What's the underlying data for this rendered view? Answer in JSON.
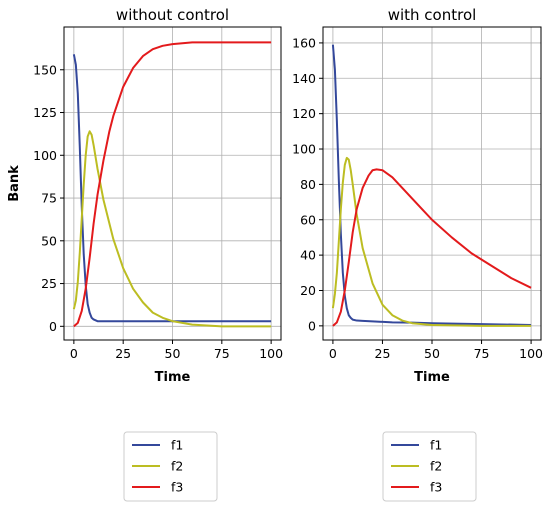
{
  "chart_data": [
    {
      "type": "line",
      "title": "without control",
      "xlabel": "Time",
      "ylabel": "Bank",
      "xlim": [
        -5,
        105
      ],
      "ylim": [
        -8,
        175
      ],
      "xticks": [
        0,
        25,
        50,
        75,
        100
      ],
      "yticks": [
        0,
        25,
        50,
        75,
        100,
        125,
        150
      ],
      "grid": true,
      "legend": "below",
      "series": [
        {
          "name": "f1",
          "color": "#34489b",
          "x": [
            0,
            1,
            2,
            3,
            4,
            5,
            6,
            7,
            8,
            9,
            10,
            12,
            15,
            20,
            30,
            50,
            75,
            100
          ],
          "y": [
            159,
            153,
            136,
            105,
            70,
            42,
            24,
            13,
            8,
            5,
            4,
            3,
            3,
            3,
            3,
            3,
            3,
            3
          ]
        },
        {
          "name": "f2",
          "color": "#bcbd22",
          "x": [
            0,
            1,
            2,
            3,
            4,
            5,
            6,
            7,
            8,
            9,
            10,
            12,
            15,
            20,
            25,
            30,
            35,
            40,
            45,
            50,
            60,
            75,
            100
          ],
          "y": [
            10,
            15,
            26,
            43,
            63,
            83,
            100,
            111,
            114,
            112,
            106,
            92,
            74,
            51,
            34,
            22,
            14,
            8,
            5,
            3,
            1,
            0,
            0
          ]
        },
        {
          "name": "f3",
          "color": "#e31a1c",
          "x": [
            0,
            2,
            4,
            6,
            8,
            10,
            12,
            15,
            18,
            20,
            25,
            30,
            35,
            40,
            45,
            50,
            60,
            70,
            80,
            90,
            100
          ],
          "y": [
            0,
            2,
            9,
            22,
            40,
            60,
            77,
            97,
            114,
            123,
            140,
            151,
            158,
            162,
            164,
            165,
            166,
            166,
            166,
            166,
            166
          ]
        }
      ]
    },
    {
      "type": "line",
      "title": "with control",
      "xlabel": "Time",
      "ylabel": "",
      "xlim": [
        -5,
        105
      ],
      "ylim": [
        -8,
        169
      ],
      "xticks": [
        0,
        25,
        50,
        75,
        100
      ],
      "yticks": [
        0,
        20,
        40,
        60,
        80,
        100,
        120,
        140,
        160
      ],
      "grid": true,
      "legend": "below",
      "series": [
        {
          "name": "f1",
          "color": "#34489b",
          "x": [
            0,
            1,
            2,
            3,
            4,
            5,
            6,
            7,
            8,
            9,
            10,
            12,
            15,
            20,
            30,
            40,
            50,
            75,
            100
          ],
          "y": [
            159,
            145,
            116,
            82,
            52,
            30,
            17,
            10,
            6,
            4.5,
            3.5,
            3,
            2.8,
            2.5,
            2,
            1.8,
            1.5,
            1,
            0.5
          ]
        },
        {
          "name": "f2",
          "color": "#bcbd22",
          "x": [
            0,
            1,
            2,
            3,
            4,
            5,
            6,
            7,
            8,
            9,
            10,
            12,
            15,
            20,
            25,
            30,
            35,
            40,
            50,
            75,
            100
          ],
          "y": [
            10,
            18,
            30,
            48,
            66,
            81,
            91,
            95,
            94,
            88,
            80,
            63,
            44,
            24,
            12,
            6,
            3,
            1.5,
            0.5,
            0,
            0
          ]
        },
        {
          "name": "f3",
          "color": "#e31a1c",
          "x": [
            0,
            2,
            4,
            6,
            8,
            10,
            12,
            15,
            18,
            20,
            22,
            25,
            30,
            35,
            40,
            45,
            50,
            60,
            70,
            80,
            90,
            100
          ],
          "y": [
            0,
            2,
            8,
            20,
            36,
            53,
            66,
            78,
            85,
            88,
            88.5,
            88,
            84,
            78,
            72,
            66,
            60,
            50,
            41,
            34,
            27,
            21.5
          ]
        }
      ]
    }
  ]
}
